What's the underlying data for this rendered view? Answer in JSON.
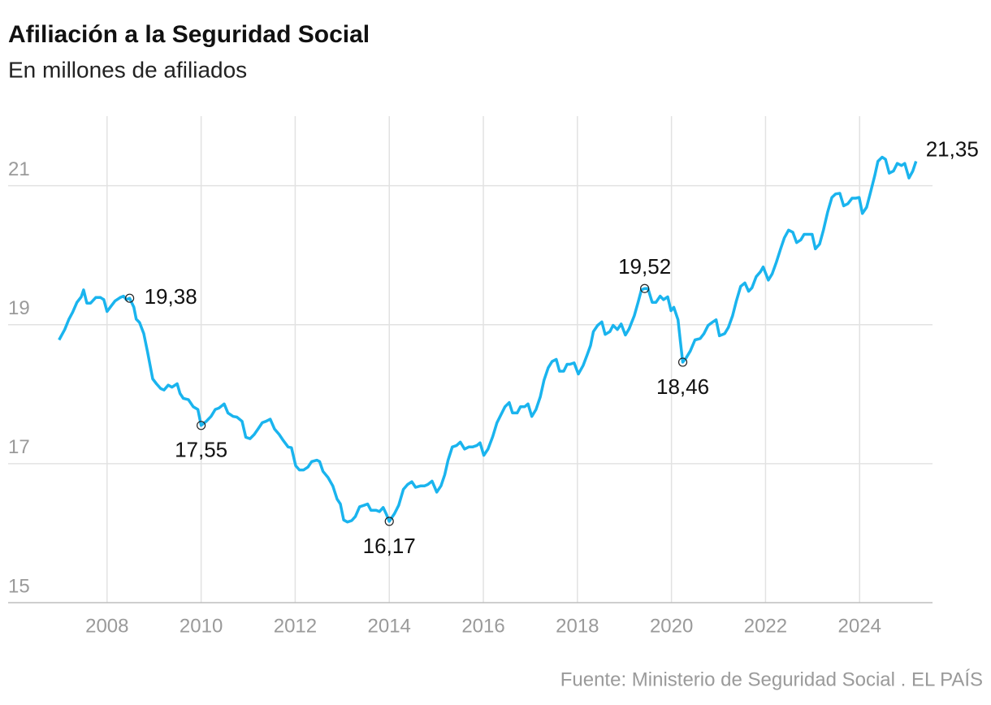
{
  "chart_data": {
    "type": "line",
    "title": "Afiliación a la Seguridad Social",
    "subtitle": "En millones de afiliados",
    "source": "Fuente: Ministerio de Seguridad Social . EL PAÍS",
    "xlim": [
      2006,
      2025.55
    ],
    "xticks": [
      2008,
      2010,
      2012,
      2014,
      2016,
      2018,
      2020,
      2022,
      2024
    ],
    "ylim": [
      15,
      22
    ],
    "yticks": [
      15,
      17,
      19,
      21
    ],
    "grid": true,
    "series": [
      {
        "color": "#1ab4ee",
        "x": [
          2006.98,
          2007.1,
          2007.19,
          2007.27,
          2007.36,
          2007.45,
          2007.5,
          2007.57,
          2007.65,
          2007.76,
          2007.86,
          2007.93,
          2008.0,
          2008.09,
          2008.17,
          2008.28,
          2008.35,
          2008.41,
          2008.48,
          2008.57,
          2008.62,
          2008.69,
          2008.78,
          2008.86,
          2008.97,
          2009.05,
          2009.14,
          2009.21,
          2009.3,
          2009.38,
          2009.49,
          2009.55,
          2009.62,
          2009.73,
          2009.83,
          2009.93,
          2010.0,
          2010.11,
          2010.21,
          2010.3,
          2010.38,
          2010.49,
          2010.57,
          2010.68,
          2010.76,
          2010.87,
          2010.95,
          2011.04,
          2011.13,
          2011.21,
          2011.3,
          2011.38,
          2011.47,
          2011.56,
          2011.66,
          2011.75,
          2011.85,
          2011.92,
          2012.01,
          2012.09,
          2012.18,
          2012.27,
          2012.35,
          2012.46,
          2012.52,
          2012.59,
          2012.7,
          2012.8,
          2012.89,
          2012.96,
          2013.03,
          2013.11,
          2013.2,
          2013.28,
          2013.37,
          2013.46,
          2013.54,
          2013.61,
          2013.72,
          2013.79,
          2013.87,
          2013.94,
          2014.0,
          2014.11,
          2014.2,
          2014.3,
          2014.39,
          2014.48,
          2014.56,
          2014.67,
          2014.75,
          2014.82,
          2014.91,
          2015.01,
          2015.1,
          2015.18,
          2015.25,
          2015.34,
          2015.43,
          2015.51,
          2015.6,
          2015.69,
          2015.77,
          2015.86,
          2015.93,
          2016.01,
          2016.1,
          2016.2,
          2016.29,
          2016.38,
          2016.46,
          2016.55,
          2016.62,
          2016.72,
          2016.79,
          2016.88,
          2016.95,
          2017.03,
          2017.12,
          2017.21,
          2017.29,
          2017.38,
          2017.46,
          2017.55,
          2017.62,
          2017.71,
          2017.78,
          2017.84,
          2017.93,
          2018.02,
          2018.12,
          2018.21,
          2018.28,
          2018.34,
          2018.43,
          2018.52,
          2018.59,
          2018.69,
          2018.76,
          2018.85,
          2018.93,
          2019.02,
          2019.1,
          2019.21,
          2019.29,
          2019.36,
          2019.43,
          2019.5,
          2019.59,
          2019.67,
          2019.76,
          2019.83,
          2019.92,
          2019.99,
          2020.05,
          2020.14,
          2020.19,
          2020.24,
          2020.31,
          2020.4,
          2020.5,
          2020.61,
          2020.69,
          2020.78,
          2020.88,
          2020.95,
          2021.02,
          2021.13,
          2021.21,
          2021.3,
          2021.38,
          2021.47,
          2021.56,
          2021.64,
          2021.71,
          2021.8,
          2021.89,
          2021.95,
          2022.06,
          2022.14,
          2022.23,
          2022.32,
          2022.4,
          2022.49,
          2022.58,
          2022.66,
          2022.75,
          2022.82,
          2022.92,
          2022.99,
          2023.06,
          2023.15,
          2023.23,
          2023.32,
          2023.41,
          2023.49,
          2023.58,
          2023.66,
          2023.75,
          2023.84,
          2023.92,
          2023.99,
          2024.06,
          2024.15,
          2024.23,
          2024.32,
          2024.39,
          2024.48,
          2024.55,
          2024.63,
          2024.72,
          2024.8,
          2024.89,
          2024.96,
          2025.05,
          2025.13,
          2025.2
        ],
        "values": [
          18.78,
          18.93,
          19.08,
          19.18,
          19.32,
          19.4,
          19.5,
          19.31,
          19.31,
          19.39,
          19.39,
          19.36,
          19.19,
          19.27,
          19.34,
          19.39,
          19.41,
          19.36,
          19.38,
          19.25,
          19.08,
          19.03,
          18.87,
          18.61,
          18.22,
          18.15,
          18.08,
          18.06,
          18.13,
          18.1,
          18.15,
          18.01,
          17.94,
          17.92,
          17.82,
          17.78,
          17.55,
          17.61,
          17.68,
          17.78,
          17.8,
          17.86,
          17.73,
          17.68,
          17.67,
          17.61,
          17.38,
          17.36,
          17.42,
          17.5,
          17.59,
          17.61,
          17.64,
          17.5,
          17.42,
          17.33,
          17.24,
          17.23,
          16.97,
          16.91,
          16.91,
          16.95,
          17.03,
          17.05,
          17.03,
          16.89,
          16.8,
          16.68,
          16.49,
          16.42,
          16.19,
          16.16,
          16.18,
          16.24,
          16.38,
          16.4,
          16.42,
          16.33,
          16.33,
          16.31,
          16.37,
          16.27,
          16.17,
          16.28,
          16.4,
          16.63,
          16.7,
          16.74,
          16.66,
          16.68,
          16.68,
          16.7,
          16.75,
          16.59,
          16.68,
          16.84,
          17.05,
          17.24,
          17.26,
          17.31,
          17.21,
          17.24,
          17.24,
          17.26,
          17.3,
          17.12,
          17.21,
          17.39,
          17.59,
          17.71,
          17.82,
          17.88,
          17.73,
          17.73,
          17.82,
          17.82,
          17.86,
          17.68,
          17.78,
          17.96,
          18.2,
          18.38,
          18.47,
          18.5,
          18.33,
          18.33,
          18.43,
          18.43,
          18.45,
          18.29,
          18.41,
          18.57,
          18.7,
          18.9,
          18.99,
          19.04,
          18.86,
          18.9,
          18.99,
          18.93,
          19.01,
          18.85,
          18.94,
          19.13,
          19.32,
          19.5,
          19.52,
          19.52,
          19.32,
          19.32,
          19.41,
          19.36,
          19.4,
          19.2,
          19.25,
          19.07,
          18.76,
          18.46,
          18.52,
          18.62,
          18.78,
          18.8,
          18.87,
          18.99,
          19.04,
          19.07,
          18.84,
          18.87,
          18.96,
          19.13,
          19.34,
          19.55,
          19.6,
          19.48,
          19.53,
          19.69,
          19.76,
          19.83,
          19.64,
          19.73,
          19.9,
          20.09,
          20.25,
          20.36,
          20.33,
          20.18,
          20.22,
          20.3,
          20.3,
          20.3,
          20.09,
          20.16,
          20.36,
          20.62,
          20.83,
          20.88,
          20.89,
          20.71,
          20.74,
          20.82,
          20.82,
          20.83,
          20.6,
          20.69,
          20.9,
          21.14,
          21.35,
          21.41,
          21.38,
          21.18,
          21.21,
          21.32,
          21.29,
          21.32,
          21.11,
          21.21,
          21.35
        ]
      }
    ],
    "annotations": [
      {
        "x": 2008.48,
        "y": 19.38,
        "label": "19,38"
      },
      {
        "x": 2010.0,
        "y": 17.55,
        "label": "17,55"
      },
      {
        "x": 2014.0,
        "y": 16.17,
        "label": "16,17"
      },
      {
        "x": 2019.43,
        "y": 19.52,
        "label": "19,52"
      },
      {
        "x": 2020.24,
        "y": 18.46,
        "label": "18,46"
      },
      {
        "x": 2025.2,
        "y": 21.35,
        "label": "21,35"
      }
    ]
  }
}
